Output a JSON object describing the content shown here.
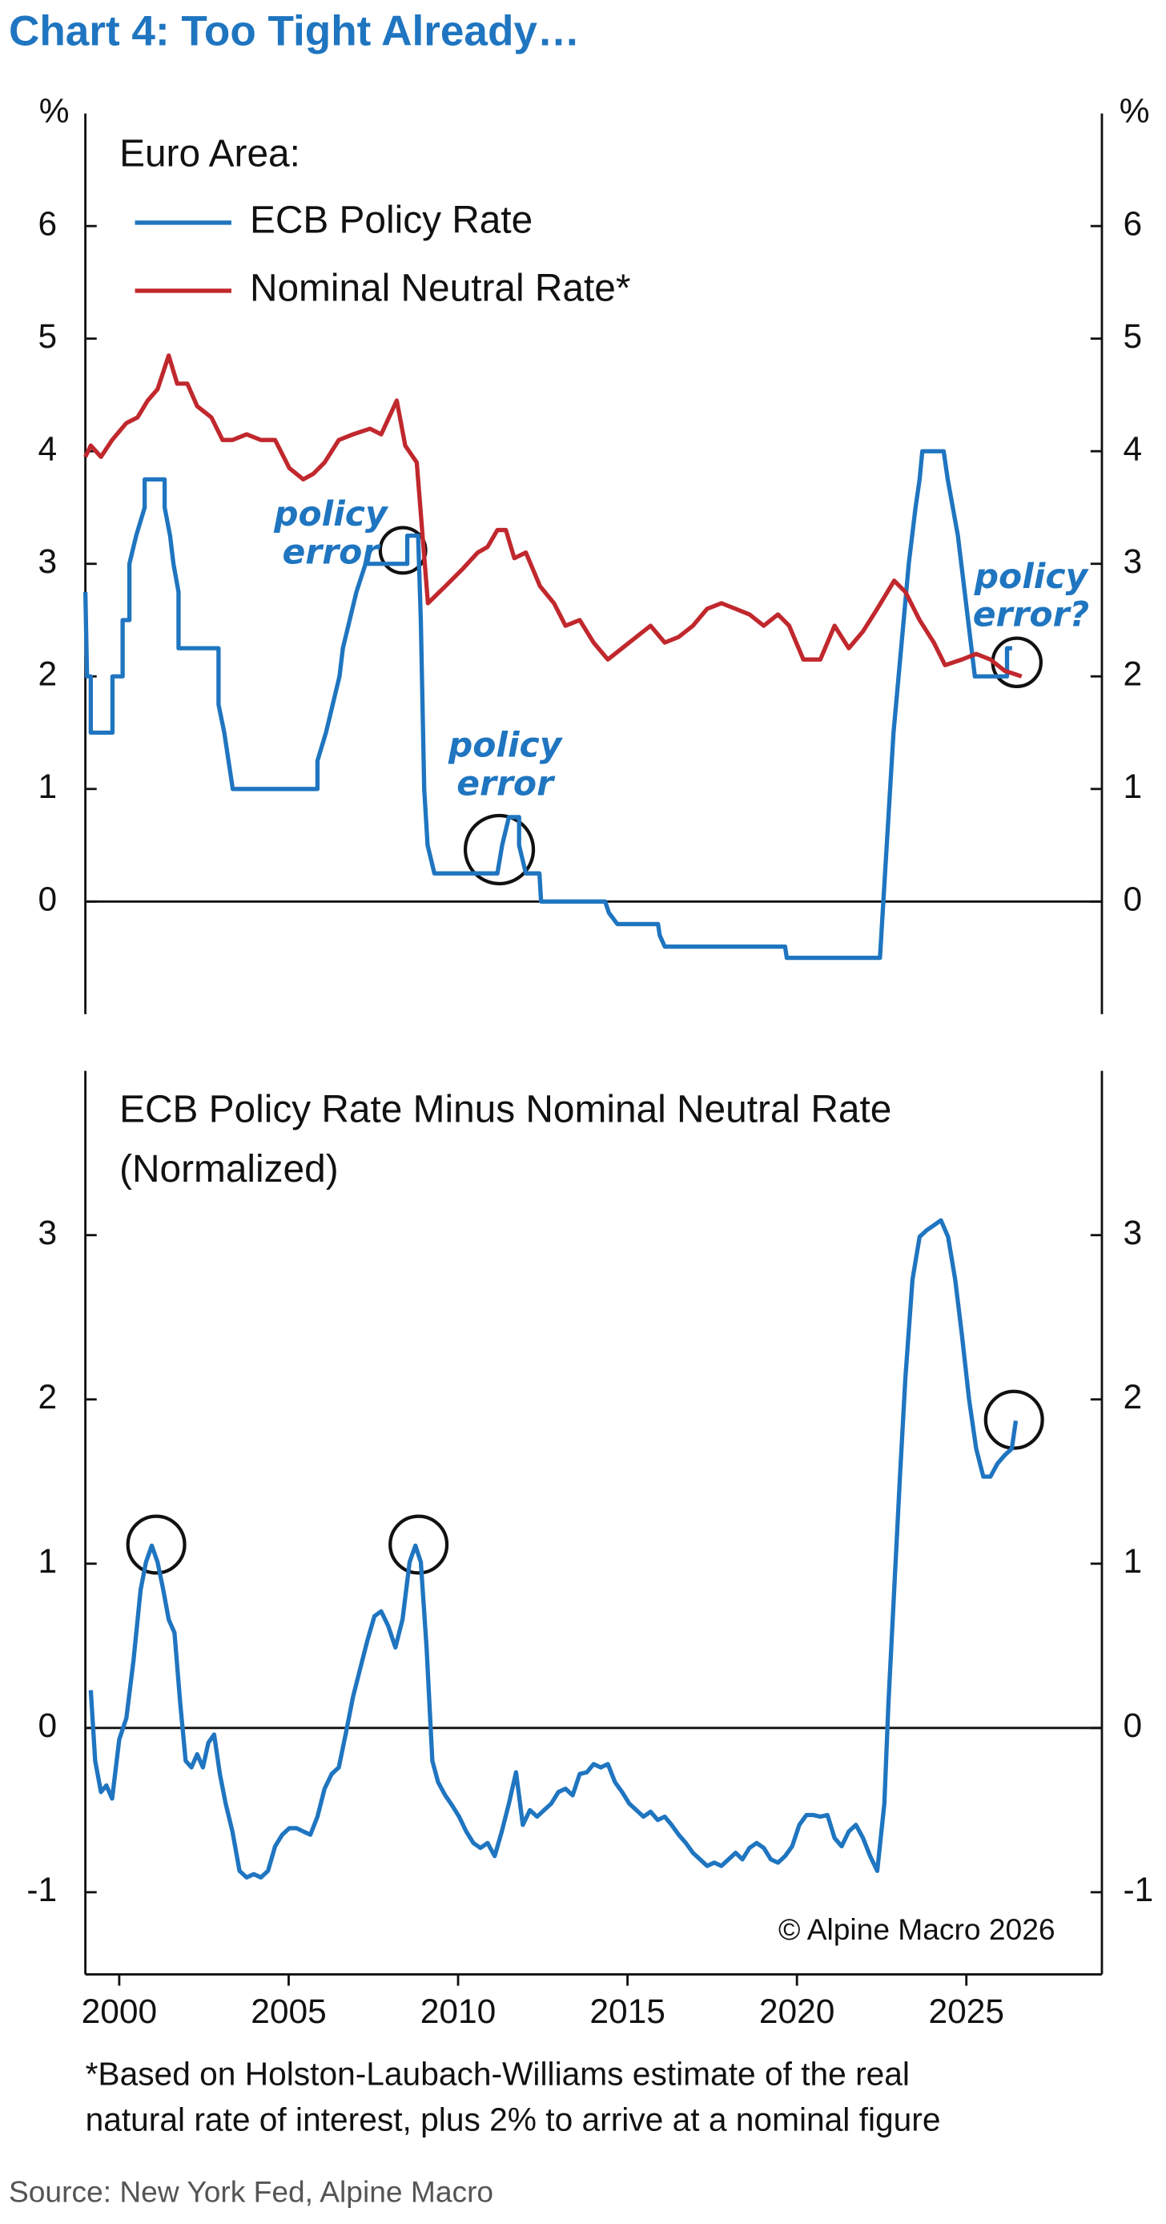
{
  "title": "Chart 4: Too Tight Already…",
  "footnote": [
    "*Based on Holston-Laubach-Williams estimate of the real",
    "natural rate of interest, plus 2% to arrive at a nominal figure"
  ],
  "source": "Source: New York Fed, Alpine Macro",
  "chart_data": [
    {
      "type": "line",
      "legend_title": "Euro Area:",
      "y_unit": "%",
      "xlim": [
        1999,
        2029
      ],
      "ylim": [
        -1,
        7
      ],
      "yticks": [
        0,
        1,
        2,
        3,
        4,
        5,
        6
      ],
      "annotations": [
        [
          "policy",
          "error"
        ],
        [
          "policy",
          "error"
        ],
        [
          "policy",
          "error?"
        ]
      ],
      "series": [
        {
          "name": "ECB Policy Rate",
          "color": "#1f75c0",
          "x": [
            1999.0,
            1999.05,
            1999.16,
            1999.16,
            1999.8,
            1999.8,
            2000.1,
            2000.1,
            2000.3,
            2000.3,
            2000.5,
            2000.75,
            2000.75,
            2001.34,
            2001.34,
            2001.5,
            2001.6,
            2001.75,
            2001.75,
            2002.93,
            2002.93,
            2003.1,
            2003.35,
            2005.85,
            2005.85,
            2006.1,
            2006.3,
            2006.5,
            2006.6,
            2006.8,
            2007.0,
            2007.27,
            2008.5,
            2008.5,
            2008.82,
            2008.9,
            2009.0,
            2009.1,
            2009.3,
            2011.16,
            2011.3,
            2011.5,
            2011.8,
            2011.8,
            2012.0,
            2012.4,
            2012.45,
            2014.34,
            2014.45,
            2014.7,
            2015.9,
            2015.95,
            2016.1,
            2019.65,
            2019.7,
            2022.45,
            2022.55,
            2022.7,
            2022.85,
            2023.0,
            2023.15,
            2023.3,
            2023.4,
            2023.5,
            2023.62,
            2023.7,
            2024.33,
            2024.45,
            2024.6,
            2024.75,
            2024.85,
            2024.95,
            2025.05,
            2025.15,
            2025.25,
            2026.2,
            2026.2,
            2026.35
          ],
          "values": [
            2.75,
            2.0,
            2.0,
            1.5,
            1.5,
            2.0,
            2.0,
            2.5,
            2.5,
            3.0,
            3.25,
            3.5,
            3.75,
            3.75,
            3.5,
            3.25,
            3.0,
            2.75,
            2.25,
            2.25,
            1.75,
            1.5,
            1.0,
            1.0,
            1.25,
            1.5,
            1.75,
            2.0,
            2.25,
            2.5,
            2.75,
            3.0,
            3.0,
            3.25,
            3.25,
            2.5,
            1.0,
            0.5,
            0.25,
            0.25,
            0.5,
            0.75,
            0.75,
            0.5,
            0.25,
            0.25,
            0,
            0,
            -0.1,
            -0.2,
            -0.2,
            -0.3,
            -0.4,
            -0.4,
            -0.5,
            -0.5,
            0,
            0.75,
            1.5,
            2.0,
            2.5,
            3.0,
            3.25,
            3.5,
            3.75,
            4.0,
            4.0,
            3.75,
            3.5,
            3.25,
            3.0,
            2.75,
            2.5,
            2.25,
            2.0,
            2.0,
            2.25,
            2.25
          ]
        },
        {
          "name": "Nominal Neutral Rate*",
          "color": "#c0282d",
          "x": [
            1999.0,
            1999.16,
            1999.46,
            1999.79,
            2000.21,
            2000.54,
            2000.84,
            2001.13,
            2001.46,
            2001.71,
            2002.01,
            2002.3,
            2002.72,
            2003.05,
            2003.34,
            2003.76,
            2004.18,
            2004.6,
            2005.02,
            2005.43,
            2005.73,
            2006.06,
            2006.48,
            2006.9,
            2007.4,
            2007.73,
            2008.19,
            2008.44,
            2008.78,
            2009.11,
            2009.62,
            2010.12,
            2010.58,
            2010.87,
            2011.16,
            2011.41,
            2011.66,
            2012.0,
            2012.42,
            2012.83,
            2013.17,
            2013.59,
            2014.0,
            2014.42,
            2014.84,
            2015.26,
            2015.68,
            2016.1,
            2016.51,
            2016.93,
            2017.35,
            2017.77,
            2018.19,
            2018.6,
            2019.02,
            2019.44,
            2019.77,
            2020.19,
            2020.69,
            2021.11,
            2021.53,
            2021.95,
            2022.37,
            2022.87,
            2023.2,
            2023.62,
            2024.04,
            2024.37,
            2024.87,
            2025.29,
            2025.71,
            2026.13,
            2026.63
          ],
          "values": [
            3.95,
            4.05,
            3.95,
            4.1,
            4.25,
            4.3,
            4.45,
            4.55,
            4.85,
            4.6,
            4.6,
            4.4,
            4.3,
            4.1,
            4.1,
            4.15,
            4.1,
            4.1,
            3.85,
            3.75,
            3.8,
            3.9,
            4.1,
            4.15,
            4.2,
            4.15,
            4.45,
            4.05,
            3.9,
            2.65,
            2.8,
            2.95,
            3.1,
            3.15,
            3.3,
            3.3,
            3.05,
            3.1,
            2.8,
            2.65,
            2.45,
            2.5,
            2.3,
            2.15,
            2.25,
            2.35,
            2.45,
            2.3,
            2.35,
            2.45,
            2.6,
            2.65,
            2.6,
            2.55,
            2.45,
            2.55,
            2.45,
            2.15,
            2.15,
            2.45,
            2.25,
            2.4,
            2.6,
            2.85,
            2.75,
            2.5,
            2.3,
            2.1,
            2.15,
            2.2,
            2.15,
            2.05,
            2.0
          ]
        }
      ]
    },
    {
      "type": "line",
      "title": [
        "ECB Policy Rate Minus Nominal Neutral Rate",
        "(Normalized)"
      ],
      "note": "© Alpine Macro 2026",
      "xlim": [
        1999,
        2029
      ],
      "ylim": [
        -1.5,
        4
      ],
      "yticks": [
        -1,
        0,
        1,
        2,
        3
      ],
      "xticks": [
        2000,
        2005,
        2010,
        2015,
        2020,
        2025
      ],
      "series": [
        {
          "color": "#1f75c0",
          "x": [
            1999.16,
            1999.29,
            1999.46,
            1999.62,
            1999.79,
            2000.0,
            2000.21,
            2000.42,
            2000.63,
            2000.79,
            2000.96,
            2001.13,
            2001.3,
            2001.46,
            2001.63,
            2001.8,
            2001.96,
            2002.13,
            2002.3,
            2002.47,
            2002.63,
            2002.8,
            2002.97,
            2003.14,
            2003.34,
            2003.55,
            2003.76,
            2003.97,
            2004.18,
            2004.39,
            2004.6,
            2004.81,
            2005.02,
            2005.23,
            2005.43,
            2005.64,
            2005.85,
            2006.06,
            2006.27,
            2006.48,
            2006.69,
            2006.9,
            2007.11,
            2007.32,
            2007.53,
            2007.73,
            2007.94,
            2008.15,
            2008.36,
            2008.57,
            2008.74,
            2008.9,
            2009.07,
            2009.24,
            2009.41,
            2009.62,
            2009.82,
            2010.03,
            2010.24,
            2010.45,
            2010.66,
            2010.87,
            2011.08,
            2011.29,
            2011.5,
            2011.71,
            2011.91,
            2012.12,
            2012.33,
            2012.54,
            2012.75,
            2012.96,
            2013.17,
            2013.38,
            2013.59,
            2013.8,
            2014.0,
            2014.21,
            2014.42,
            2014.63,
            2014.84,
            2015.05,
            2015.26,
            2015.47,
            2015.68,
            2015.89,
            2016.1,
            2016.3,
            2016.51,
            2016.72,
            2016.93,
            2017.14,
            2017.35,
            2017.56,
            2017.77,
            2017.98,
            2018.19,
            2018.39,
            2018.6,
            2018.81,
            2019.02,
            2019.23,
            2019.44,
            2019.65,
            2019.86,
            2020.07,
            2020.28,
            2020.48,
            2020.69,
            2020.9,
            2021.11,
            2021.32,
            2021.53,
            2021.74,
            2021.95,
            2022.16,
            2022.37,
            2022.58,
            2022.7,
            2022.87,
            2023.04,
            2023.2,
            2023.41,
            2023.62,
            2023.83,
            2024.04,
            2024.25,
            2024.46,
            2024.67,
            2024.87,
            2025.08,
            2025.29,
            2025.5,
            2025.71,
            2025.92,
            2026.13,
            2026.34,
            2026.46
          ],
          "values": [
            0.23,
            -0.2,
            -0.39,
            -0.35,
            -0.43,
            -0.07,
            0.06,
            0.41,
            0.84,
            1.01,
            1.11,
            1.01,
            0.84,
            0.66,
            0.58,
            0.15,
            -0.2,
            -0.24,
            -0.16,
            -0.24,
            -0.09,
            -0.04,
            -0.28,
            -0.46,
            -0.63,
            -0.87,
            -0.91,
            -0.89,
            -0.91,
            -0.87,
            -0.72,
            -0.65,
            -0.61,
            -0.61,
            -0.63,
            -0.65,
            -0.54,
            -0.37,
            -0.28,
            -0.24,
            -0.03,
            0.19,
            0.36,
            0.53,
            0.68,
            0.71,
            0.62,
            0.49,
            0.66,
            1.01,
            1.11,
            1.01,
            0.49,
            -0.2,
            -0.33,
            -0.41,
            -0.47,
            -0.54,
            -0.63,
            -0.7,
            -0.73,
            -0.7,
            -0.78,
            -0.63,
            -0.46,
            -0.27,
            -0.59,
            -0.5,
            -0.54,
            -0.5,
            -0.46,
            -0.39,
            -0.37,
            -0.41,
            -0.28,
            -0.27,
            -0.22,
            -0.24,
            -0.22,
            -0.33,
            -0.39,
            -0.46,
            -0.5,
            -0.54,
            -0.51,
            -0.56,
            -0.54,
            -0.59,
            -0.65,
            -0.7,
            -0.76,
            -0.8,
            -0.84,
            -0.82,
            -0.84,
            -0.8,
            -0.76,
            -0.8,
            -0.73,
            -0.7,
            -0.73,
            -0.8,
            -0.82,
            -0.78,
            -0.72,
            -0.59,
            -0.53,
            -0.53,
            -0.54,
            -0.53,
            -0.67,
            -0.72,
            -0.63,
            -0.59,
            -0.67,
            -0.78,
            -0.87,
            -0.46,
            0.15,
            0.84,
            1.53,
            2.13,
            2.73,
            2.99,
            3.03,
            3.06,
            3.09,
            2.99,
            2.73,
            2.39,
            2.0,
            1.7,
            1.53,
            1.53,
            1.61,
            1.66,
            1.7,
            1.87
          ]
        }
      ]
    }
  ]
}
